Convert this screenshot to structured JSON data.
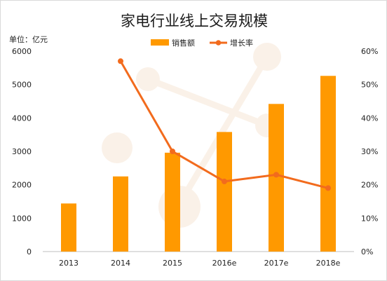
{
  "chart_data": {
    "type": "bar",
    "title": "家电行业线上交易规模",
    "unit_label": "单位：亿元",
    "categories": [
      "2013",
      "2014",
      "2015",
      "2016e",
      "2017e",
      "2018e"
    ],
    "series": [
      {
        "name": "销售额",
        "type": "bar",
        "axis": "left",
        "color": "#ff9900",
        "values": [
          1440,
          2250,
          2960,
          3580,
          4420,
          5260
        ]
      },
      {
        "name": "增长率",
        "type": "line",
        "axis": "right",
        "color": "#f26b1d",
        "values": [
          null,
          0.57,
          0.3,
          0.21,
          0.23,
          0.19
        ]
      }
    ],
    "y_left": {
      "min": 0,
      "max": 6000,
      "ticks": [
        "0",
        "1000",
        "2000",
        "3000",
        "4000",
        "5000",
        "6000"
      ]
    },
    "y_right": {
      "min": 0,
      "max": 0.6,
      "ticks": [
        "0%",
        "10%",
        "20%",
        "30%",
        "40%",
        "50%",
        "60%"
      ]
    },
    "legend_position": "top",
    "grid": false
  }
}
